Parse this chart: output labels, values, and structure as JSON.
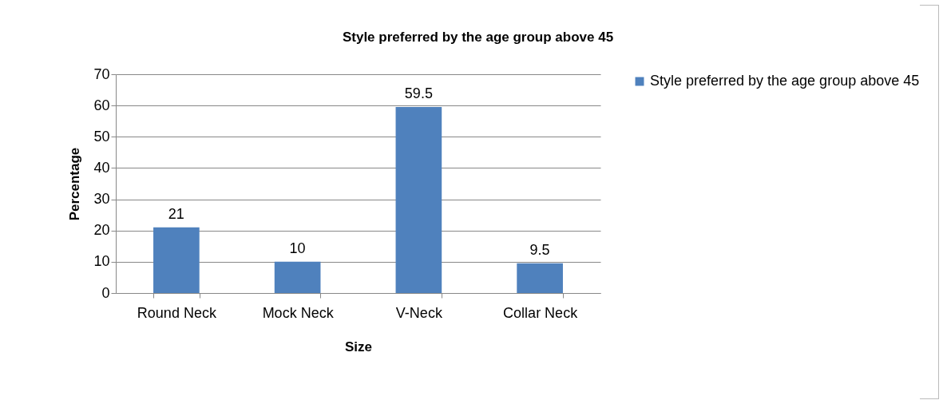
{
  "chart_data": {
    "type": "bar",
    "title": "Style preferred by the age group above 45",
    "xlabel": "Size",
    "ylabel": "Percentage",
    "categories": [
      "Round Neck",
      "Mock Neck",
      "V-Neck",
      "Collar Neck"
    ],
    "series": [
      {
        "name": "Style preferred by the age group above 45",
        "color": "#4f81bd",
        "values": [
          21,
          10,
          59.5,
          9.5
        ]
      }
    ],
    "ylim": [
      0,
      70
    ],
    "yticks": [
      0,
      10,
      20,
      30,
      40,
      50,
      60,
      70
    ],
    "grid": "y",
    "legend": "right",
    "data_labels": true
  }
}
